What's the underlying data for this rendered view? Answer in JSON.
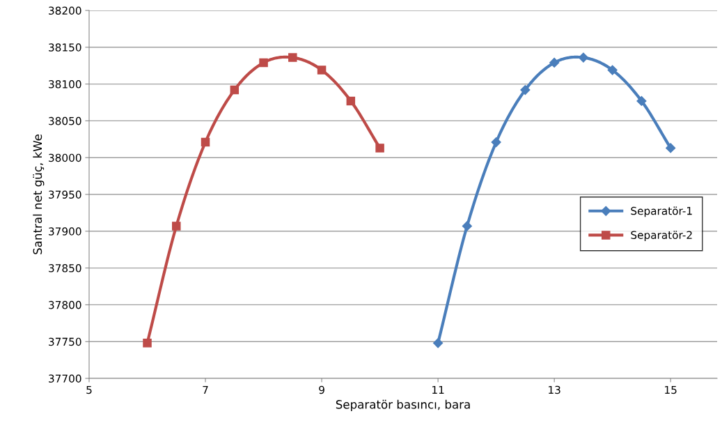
{
  "chart_data": {
    "type": "line",
    "xlabel": "Separatör basıncı, bara",
    "ylabel": "Santral net güç, kWe",
    "xlim": [
      5,
      15.8
    ],
    "xticks": [
      5,
      7,
      9,
      11,
      13,
      15
    ],
    "ylim": [
      37700,
      38200
    ],
    "yticks": [
      37700,
      37750,
      37800,
      37850,
      37900,
      37950,
      38000,
      38050,
      38100,
      38150,
      38200
    ],
    "grid": "y",
    "legend": "right",
    "line_style": "solid",
    "series": [
      {
        "name": "Separatör-1",
        "color": "#4a7ebb",
        "marker": "diamond",
        "x": [
          11,
          11.5,
          12,
          12.5,
          13,
          13.5,
          14,
          14.5,
          15
        ],
        "values": [
          37748,
          37907,
          38021,
          38092,
          38129,
          38136,
          38119,
          38077,
          38013
        ]
      },
      {
        "name": "Separatör-2",
        "color": "#be4b48",
        "marker": "square",
        "x": [
          6,
          6.5,
          7,
          7.5,
          8,
          8.5,
          9,
          9.5,
          10
        ],
        "values": [
          37748,
          37907,
          38021,
          38092,
          38129,
          38136,
          38119,
          38077,
          38013
        ]
      }
    ]
  }
}
